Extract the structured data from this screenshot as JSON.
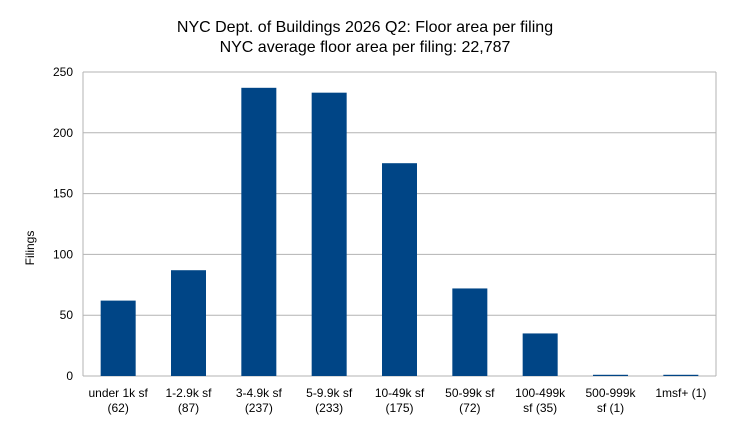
{
  "chart_data": {
    "type": "bar",
    "title": "NYC Dept. of Buildings 2026 Q2: Floor area per filing",
    "subtitle": "NYC average floor area per filing: 22,787",
    "xlabel": "",
    "ylabel": "Filings",
    "ylim": [
      0,
      250
    ],
    "yticks": [
      0,
      50,
      100,
      150,
      200,
      250
    ],
    "grid": true,
    "bar_color": "#004586",
    "categories": [
      [
        "under 1k sf",
        "(62)"
      ],
      [
        "1-2.9k sf",
        "(87)"
      ],
      [
        "3-4.9k sf",
        "(237)"
      ],
      [
        "5-9.9k sf",
        "(233)"
      ],
      [
        "10-49k sf",
        "(175)"
      ],
      [
        "50-99k sf",
        "(72)"
      ],
      [
        "100-499k",
        "sf (35)"
      ],
      [
        "500-999k",
        "sf (1)"
      ],
      [
        "1msf+ (1)"
      ]
    ],
    "values": [
      62,
      87,
      237,
      233,
      175,
      72,
      35,
      1,
      1
    ]
  }
}
